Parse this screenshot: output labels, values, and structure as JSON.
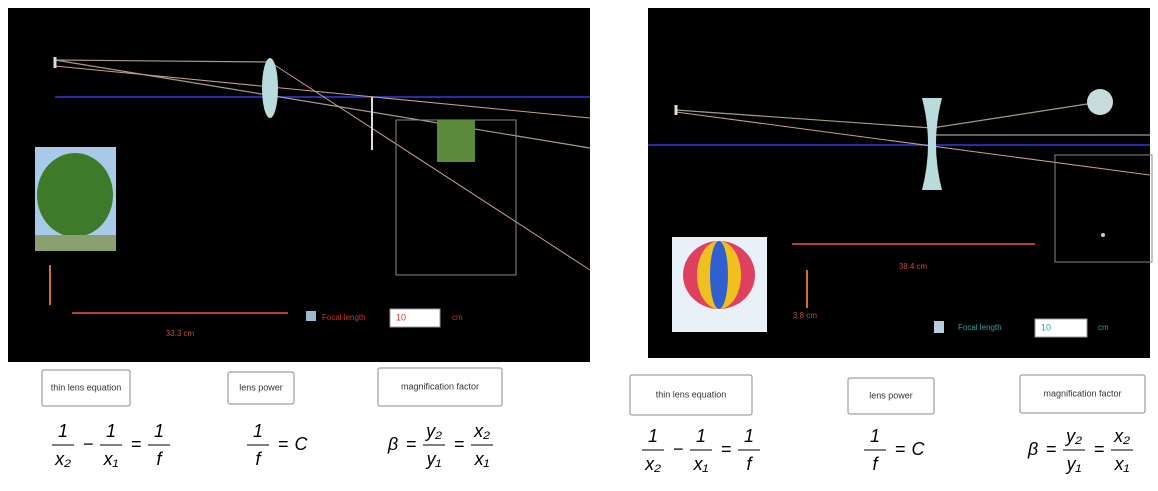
{
  "panels": [
    {
      "scale_label": "33.3 cm",
      "focal_length_label": "Focal length",
      "focal_length_value": "10",
      "focal_length_unit": "cm",
      "buttons": [
        "thin lens equation",
        "lens power",
        "magnification factor"
      ],
      "formulas": [
        [
          {
            "num": "1",
            "den": "x₂"
          },
          "−",
          {
            "num": "1",
            "den": "x₁"
          },
          "=",
          {
            "num": "1",
            "den": "f"
          }
        ],
        [
          {
            "num": "1",
            "den": "f"
          },
          "=",
          "C"
        ],
        [
          "β",
          "=",
          {
            "num": "y₂",
            "den": "y₁"
          },
          "=",
          {
            "num": "x₂",
            "den": "x₁"
          }
        ]
      ]
    },
    {
      "scale_label": "38.4 cm",
      "height_label": "3.8 cm",
      "focal_length_label": "Focal length",
      "focal_length_value": "10",
      "focal_length_unit": "cm",
      "buttons": [
        "thin lens equation",
        "lens power",
        "magnification factor"
      ],
      "formulas": [
        [
          {
            "num": "1",
            "den": "x₂"
          },
          "−",
          {
            "num": "1",
            "den": "x₁"
          },
          "=",
          {
            "num": "1",
            "den": "f"
          }
        ],
        [
          {
            "num": "1",
            "den": "f"
          },
          "=",
          "C"
        ],
        [
          "β",
          "=",
          {
            "num": "y₂",
            "den": "y₁"
          },
          "=",
          {
            "num": "x₂",
            "den": "x₁"
          }
        ]
      ]
    }
  ]
}
